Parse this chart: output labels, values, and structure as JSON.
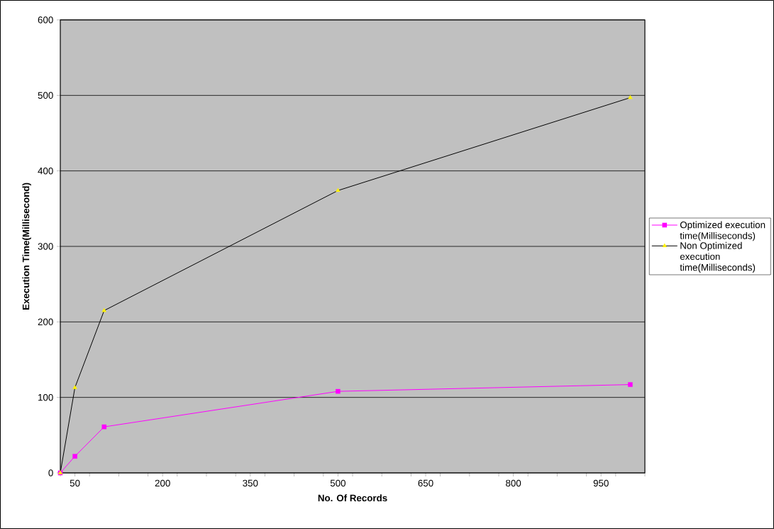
{
  "chart_data": {
    "type": "line",
    "xlabel": "No. Of Records",
    "ylabel": "Execution Time(Millisecond)",
    "x": [
      25,
      50,
      100,
      500,
      1000
    ],
    "series": [
      {
        "name": "Optimized execution time(Milliseconds)",
        "color": "#ff00ff",
        "marker": "square",
        "values": [
          0,
          22,
          61,
          108,
          117
        ]
      },
      {
        "name": "Non Optimized execution time(Milliseconds)",
        "color": "#000000",
        "marker": "triangle",
        "values": [
          0,
          113,
          215,
          374,
          497
        ]
      }
    ],
    "xlim": [
      25,
      1025
    ],
    "xticks": [
      {
        "value": 25,
        "label": null
      },
      50,
      {
        "value": 75,
        "label": null
      },
      {
        "value": 125,
        "label": null
      },
      {
        "value": 175,
        "label": null
      },
      200,
      {
        "value": 225,
        "label": null
      },
      {
        "value": 275,
        "label": null
      },
      {
        "value": 325,
        "label": null
      },
      350,
      {
        "value": 375,
        "label": null
      },
      {
        "value": 425,
        "label": null
      },
      {
        "value": 475,
        "label": null
      },
      500,
      {
        "value": 525,
        "label": null
      },
      {
        "value": 575,
        "label": null
      },
      {
        "value": 625,
        "label": null
      },
      650,
      {
        "value": 675,
        "label": null
      },
      {
        "value": 725,
        "label": null
      },
      {
        "value": 775,
        "label": null
      },
      800,
      {
        "value": 825,
        "label": null
      },
      {
        "value": 875,
        "label": null
      },
      {
        "value": 925,
        "label": null
      },
      950,
      {
        "value": 975,
        "label": null
      },
      {
        "value": 1025,
        "label": null
      }
    ],
    "ylim": [
      0,
      600
    ],
    "yticks": [
      0,
      100,
      200,
      300,
      400,
      500,
      600
    ],
    "grid": "y",
    "legend": "right"
  }
}
